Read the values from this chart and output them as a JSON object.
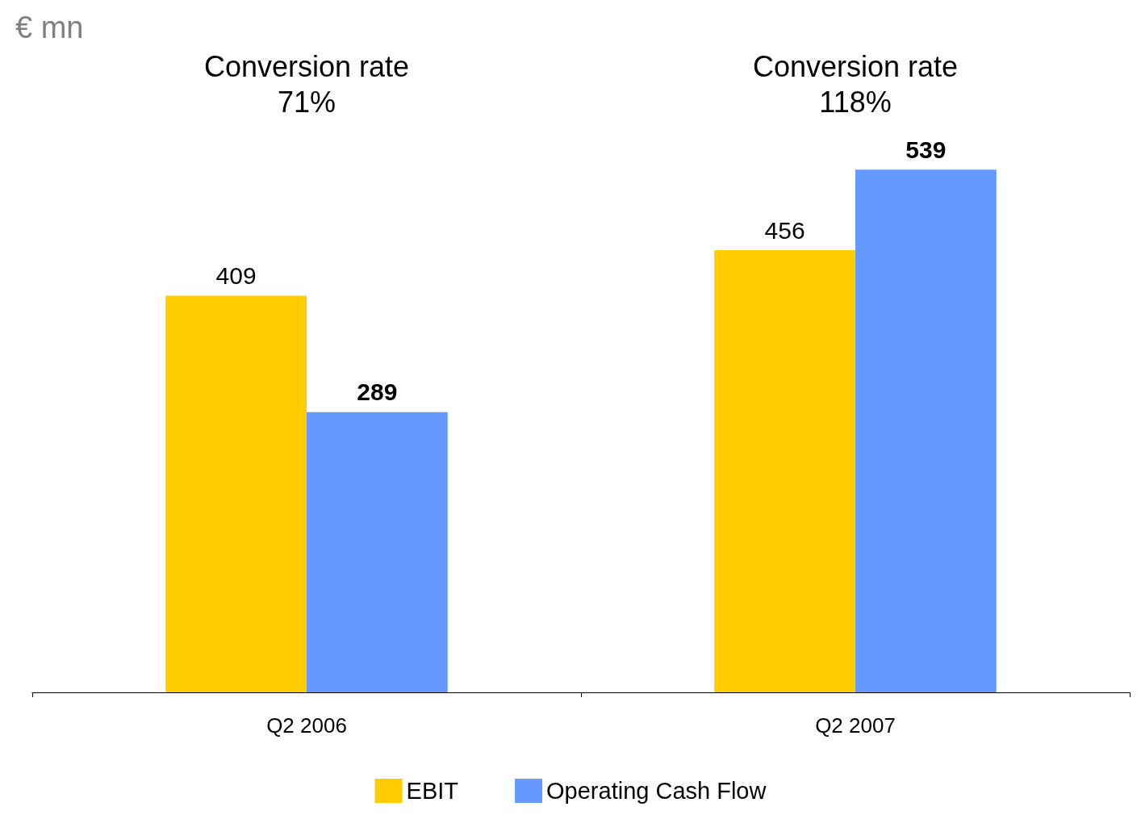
{
  "chart_data": {
    "type": "bar",
    "ylabel": "€ mn",
    "categories": [
      "Q2 2006",
      "Q2 2007"
    ],
    "series": [
      {
        "name": "EBIT",
        "color": "#ffcc00",
        "values": [
          409,
          456
        ]
      },
      {
        "name": "Operating Cash Flow",
        "color": "#6699ff",
        "values": [
          289,
          539
        ]
      }
    ],
    "annotations": [
      "Conversion rate\n71%",
      "Conversion rate\n118%"
    ],
    "data_labels": true,
    "legend": "bottom",
    "grid": false
  }
}
